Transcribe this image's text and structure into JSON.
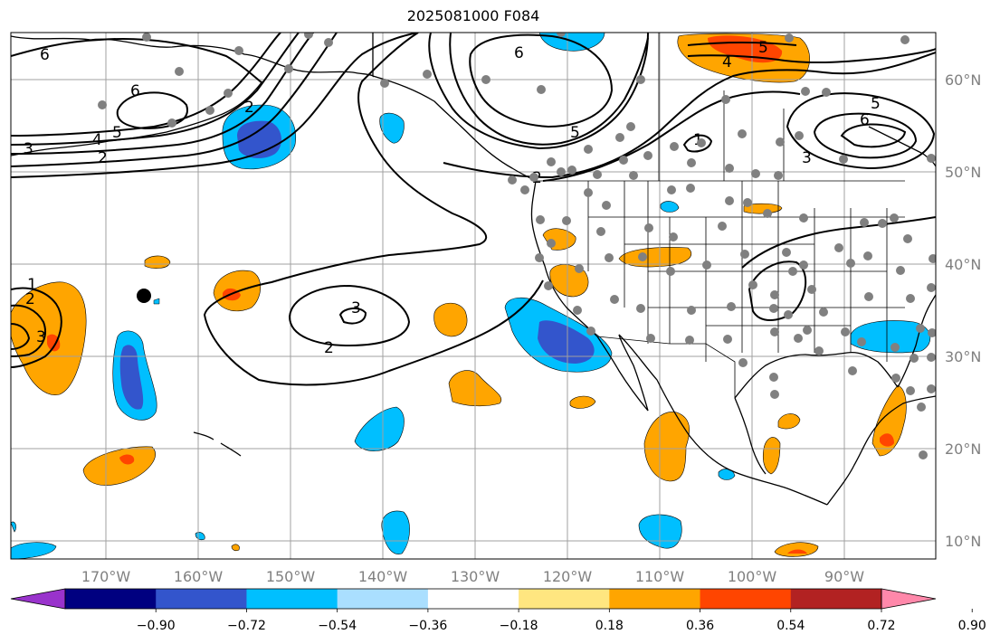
{
  "title": "2025081000 F084",
  "lon_ticks": [
    "170°W",
    "160°W",
    "150°W",
    "140°W",
    "130°W",
    "120°W",
    "110°W",
    "100°W",
    "90°W"
  ],
  "lat_ticks": [
    "60°N",
    "50°N",
    "40°N",
    "30°N",
    "20°N",
    "10°N"
  ],
  "colorbar": {
    "labels": [
      "−0.90",
      "−0.72",
      "−0.54",
      "−0.36",
      "−0.18",
      "0.18",
      "0.36",
      "0.54",
      "0.72",
      "0.90"
    ],
    "colors": [
      "#9933cc",
      "#000080",
      "#3355cc",
      "#00bfff",
      "#aadfff",
      "#ffffff",
      "#ffe680",
      "#ffa500",
      "#ff4500",
      "#b22222",
      "#ff88aa"
    ]
  },
  "contour_labels": [
    "6",
    "6",
    "5",
    "4",
    "3",
    "2",
    "6",
    "5",
    "4",
    "5",
    "6",
    "3",
    "5",
    "3",
    "2",
    "1",
    "2",
    "3",
    "2",
    "1",
    "2"
  ],
  "colors": {
    "tick_text": "#808080",
    "grid": "#a0a0a0",
    "station_dot": "#808080"
  }
}
